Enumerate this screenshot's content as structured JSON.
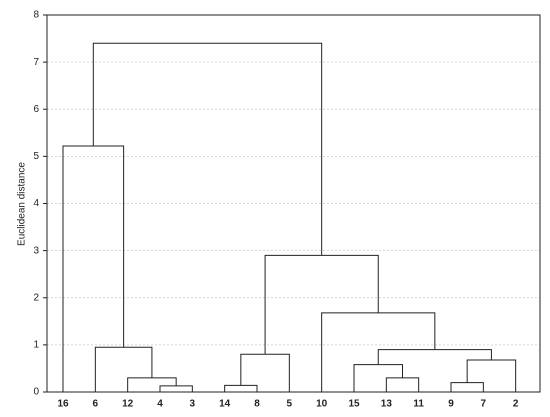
{
  "chart_data": {
    "type": "dendrogram",
    "y_label": "Euclidean distance",
    "categories": [
      "16",
      "6",
      "12",
      "4",
      "3",
      "14",
      "8",
      "5",
      "10",
      "15",
      "13",
      "11",
      "9",
      "7",
      "2"
    ],
    "merges": [
      {
        "children": [
          3,
          4
        ],
        "height": 0.13
      },
      {
        "children": [
          2,
          15
        ],
        "height": 0.3
      },
      {
        "children": [
          1,
          16
        ],
        "height": 0.95
      },
      {
        "children": [
          0,
          17
        ],
        "height": 5.22
      },
      {
        "children": [
          5,
          6
        ],
        "height": 0.14
      },
      {
        "children": [
          19,
          7
        ],
        "height": 0.8
      },
      {
        "children": [
          10,
          11
        ],
        "height": 0.3
      },
      {
        "children": [
          9,
          21
        ],
        "height": 0.58
      },
      {
        "children": [
          12,
          13
        ],
        "height": 0.2
      },
      {
        "children": [
          23,
          14
        ],
        "height": 0.68
      },
      {
        "children": [
          22,
          24
        ],
        "height": 0.9
      },
      {
        "children": [
          8,
          25
        ],
        "height": 1.68
      },
      {
        "children": [
          20,
          26
        ],
        "height": 2.9
      },
      {
        "children": [
          18,
          27
        ],
        "height": 7.4
      }
    ],
    "color": "#222222",
    "ylim": [
      0,
      8
    ],
    "yticks": [
      0,
      1,
      2,
      3,
      4,
      5,
      6,
      7,
      8
    ],
    "grid": true
  }
}
